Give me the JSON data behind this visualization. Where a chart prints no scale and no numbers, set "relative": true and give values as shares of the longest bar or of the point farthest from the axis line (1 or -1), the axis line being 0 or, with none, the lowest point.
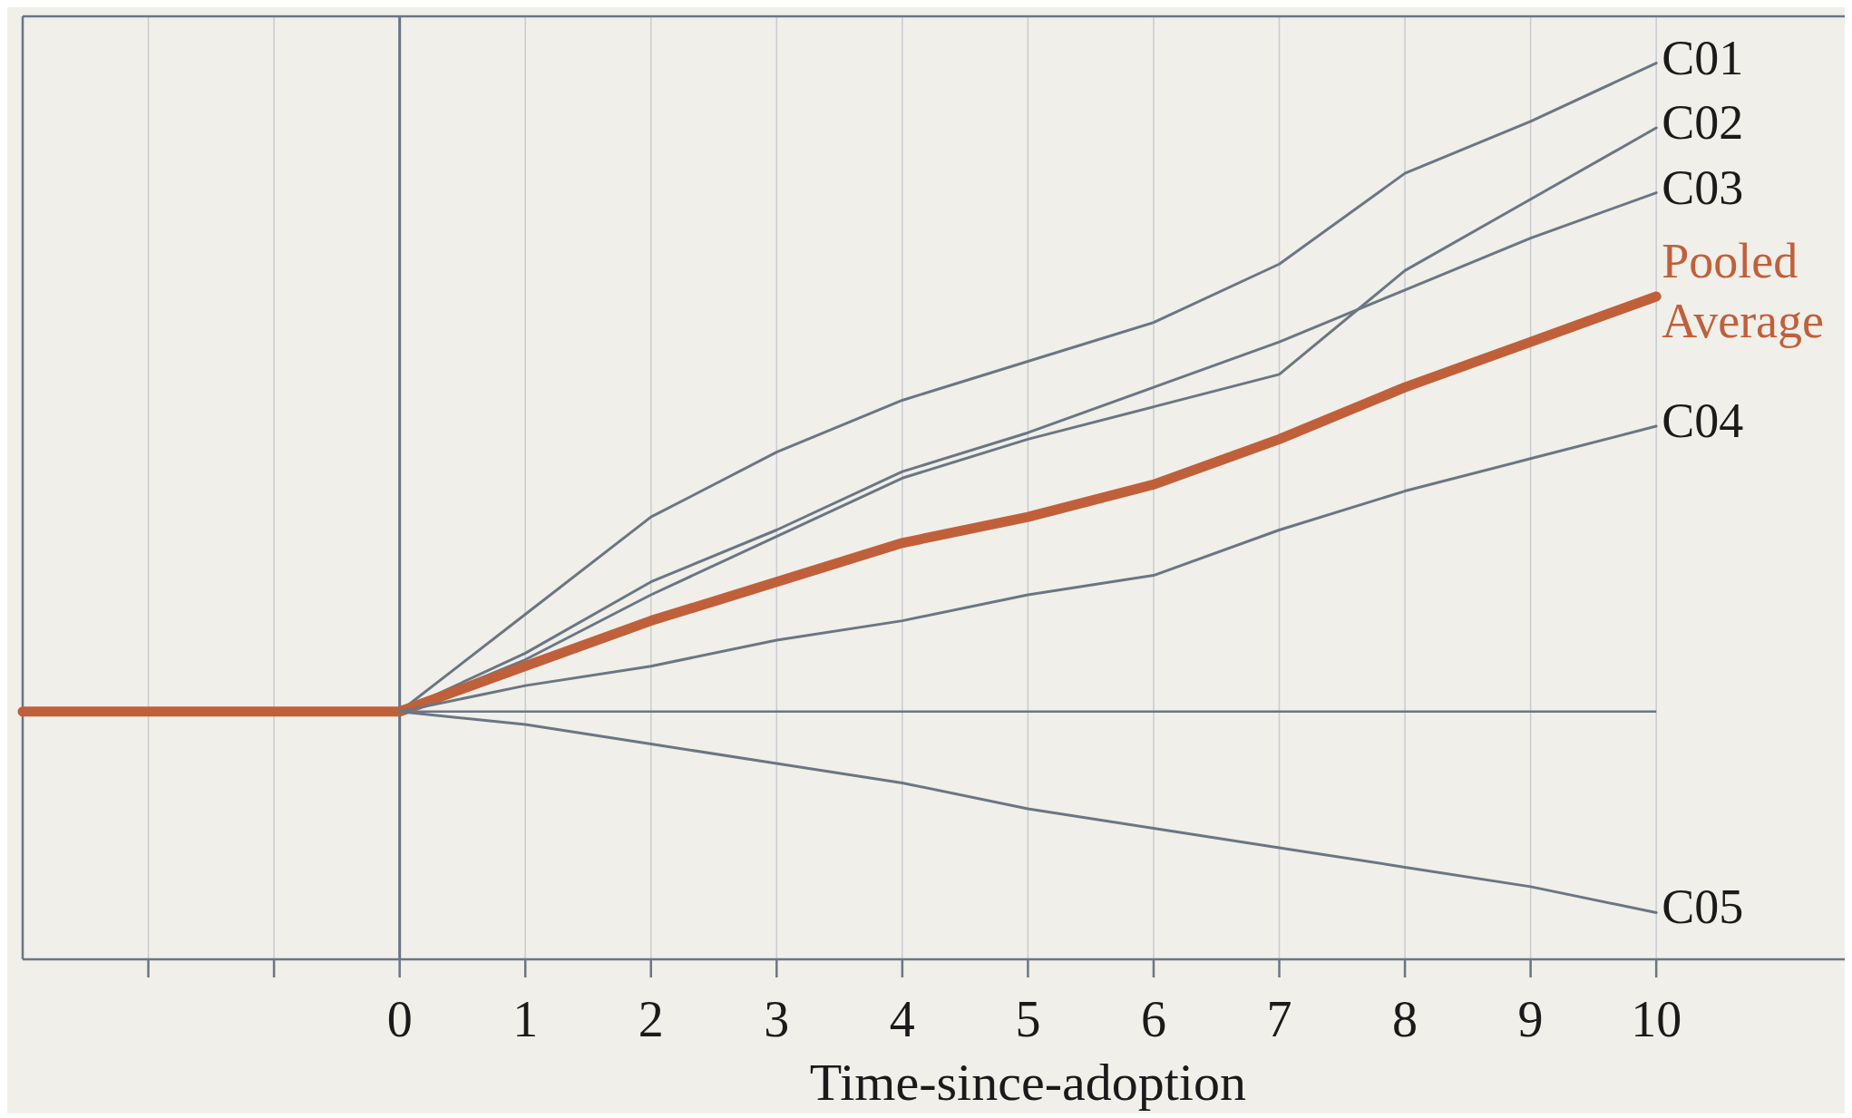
{
  "chart_data": {
    "type": "line",
    "xlabel": "Time-since-adoption",
    "relative": true,
    "xlim": [
      -3,
      11.5
    ],
    "xticks": [
      {
        "value": -2,
        "label": null
      },
      {
        "value": -1,
        "label": null
      },
      0,
      1,
      2,
      3,
      4,
      5,
      6,
      7,
      8,
      9,
      10
    ],
    "grid": "x",
    "legend": false,
    "marker": "none",
    "line_style": "solid",
    "ref_lines": [
      {
        "axis": "x",
        "value": 0,
        "color": "#6b7683"
      }
    ],
    "series": [
      {
        "name": "C01",
        "color": "#6b7683",
        "x": [
          0,
          1,
          2,
          3,
          4,
          5,
          6,
          7,
          8,
          9,
          10
        ],
        "values": [
          0,
          0.15,
          0.3,
          0.4,
          0.48,
          0.54,
          0.6,
          0.69,
          0.83,
          0.91,
          1
        ]
      },
      {
        "name": "C02",
        "color": "#6b7683",
        "x": [
          0,
          1,
          2,
          3,
          4,
          5,
          6,
          7,
          8,
          9,
          10
        ],
        "values": [
          0,
          0.08,
          0.18,
          0.27,
          0.36,
          0.42,
          0.47,
          0.52,
          0.68,
          0.79,
          0.9
        ]
      },
      {
        "name": "C03",
        "color": "#6b7683",
        "x": [
          0,
          1,
          2,
          3,
          4,
          5,
          6,
          7,
          8,
          9,
          10
        ],
        "values": [
          0,
          0.09,
          0.2,
          0.28,
          0.37,
          0.43,
          0.5,
          0.57,
          0.65,
          0.73,
          0.8
        ]
      },
      {
        "name": "Pooled Average",
        "color": "#c0603a",
        "x": [
          -3,
          -2,
          -1,
          0,
          1,
          2,
          3,
          4,
          5,
          6,
          7,
          8,
          9,
          10
        ],
        "values": [
          0,
          0,
          0,
          0,
          0.07,
          0.14,
          0.2,
          0.26,
          0.3,
          0.35,
          0.42,
          0.5,
          0.57,
          0.64
        ]
      },
      {
        "name": "C04",
        "color": "#6b7683",
        "x": [
          0,
          1,
          2,
          3,
          4,
          5,
          6,
          7,
          8,
          9,
          10
        ],
        "values": [
          0,
          0.04,
          0.07,
          0.11,
          0.14,
          0.18,
          0.21,
          0.28,
          0.34,
          0.39,
          0.44
        ]
      },
      {
        "name": "C05",
        "color": "#6b7683",
        "x": [
          0,
          1,
          2,
          3,
          4,
          5,
          6,
          7,
          8,
          9,
          10
        ],
        "values": [
          0,
          -0.02,
          -0.05,
          -0.08,
          -0.11,
          -0.15,
          -0.18,
          -0.21,
          -0.24,
          -0.27,
          -0.31
        ]
      }
    ]
  }
}
